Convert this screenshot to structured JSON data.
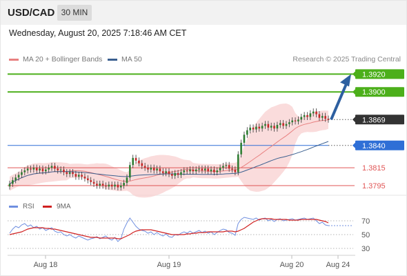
{
  "header": {
    "symbol": "USD/CAD",
    "timeframe": "30 MIN",
    "timestamp": "Wednesday, August 20, 2025 7:18:46 AM CET"
  },
  "legend": {
    "ma20_label": "MA 20 + Bollinger Bands",
    "ma50_label": "MA 50",
    "credit": "Research © 2025 Trading Central"
  },
  "rsi_legend": {
    "rsi_label": "RSI",
    "ma_label": "9MA"
  },
  "colors": {
    "up_candle": "#2e7d32",
    "down_candle": "#c62828",
    "resistance": "#4caf1a",
    "support": "#e05555",
    "pivot": "#2f6fd6",
    "last_price": "#333333",
    "ma50": "#3a5f8f",
    "ma20": "#e88080",
    "bollinger": "#f8d0d0",
    "rsi": "#6f8fe0",
    "rsi_ma": "#d02020",
    "arrow": "#2d5fa0"
  },
  "chart_data": [
    {
      "type": "candlestick",
      "title": "USD/CAD",
      "x_tick_labels": [
        "Aug 18",
        "Aug 19",
        "Aug 20",
        "Aug 24"
      ],
      "ylim": [
        1.3788,
        1.3935
      ],
      "levels": [
        {
          "value": 1.392,
          "label": "1.3920",
          "kind": "resistance"
        },
        {
          "value": 1.39,
          "label": "1.3900",
          "kind": "resistance"
        },
        {
          "value": 1.3869,
          "label": "1.3869",
          "kind": "last_price"
        },
        {
          "value": 1.384,
          "label": "1.3840",
          "kind": "pivot"
        },
        {
          "value": 1.3815,
          "label": "1.3815",
          "kind": "support"
        },
        {
          "value": 1.3795,
          "label": "1.3795",
          "kind": "support"
        }
      ],
      "series": [
        {
          "name": "MA 20 + Bollinger Bands"
        },
        {
          "name": "MA 50"
        }
      ],
      "closes": [
        1.3797,
        1.3801,
        1.3804,
        1.3807,
        1.381,
        1.3812,
        1.3814,
        1.3813,
        1.3815,
        1.3812,
        1.3814,
        1.3811,
        1.3813,
        1.3815,
        1.3817,
        1.3814,
        1.3812,
        1.3813,
        1.381,
        1.3808,
        1.381,
        1.3808,
        1.3805,
        1.3807,
        1.3805,
        1.3803,
        1.3801,
        1.3799,
        1.3797,
        1.3795,
        1.3797,
        1.3795,
        1.3794,
        1.3796,
        1.3794,
        1.3796,
        1.3793,
        1.3795,
        1.3798,
        1.3804,
        1.3818,
        1.3826,
        1.3823,
        1.382,
        1.3817,
        1.3815,
        1.3813,
        1.3815,
        1.3812,
        1.3814,
        1.3811,
        1.3809,
        1.3811,
        1.3808,
        1.3806,
        1.3809,
        1.3807,
        1.381,
        1.3812,
        1.3811,
        1.3813,
        1.3811,
        1.3813,
        1.3814,
        1.3812,
        1.3814,
        1.3811,
        1.3813,
        1.381,
        1.3812,
        1.3815,
        1.3817,
        1.3818,
        1.3814,
        1.3813,
        1.381,
        1.383,
        1.3843,
        1.3852,
        1.3857,
        1.386,
        1.3858,
        1.3861,
        1.3859,
        1.3862,
        1.3864,
        1.386,
        1.3862,
        1.3859,
        1.3863,
        1.3865,
        1.3862,
        1.3864,
        1.3866,
        1.3868,
        1.3867,
        1.3869,
        1.3872,
        1.3874,
        1.3872,
        1.3876,
        1.3878,
        1.3875,
        1.3871,
        1.3873,
        1.387,
        1.3869
      ],
      "current": {
        "last": 1.3869,
        "pivot": 1.384,
        "target": 1.392
      }
    },
    {
      "type": "line",
      "title": "RSI",
      "ylim": [
        25,
        78
      ],
      "y_ticks": [
        70,
        50,
        30
      ],
      "series": [
        {
          "name": "RSI",
          "values": [
            52,
            58,
            62,
            60,
            64,
            66,
            62,
            64,
            60,
            62,
            58,
            60,
            56,
            58,
            60,
            55,
            53,
            54,
            50,
            48,
            50,
            47,
            45,
            48,
            46,
            44,
            42,
            44,
            45,
            47,
            44,
            46,
            48,
            44,
            42,
            46,
            40,
            44,
            58,
            67,
            74,
            68,
            62,
            58,
            56,
            55,
            52,
            54,
            50,
            53,
            50,
            48,
            51,
            47,
            46,
            50,
            49,
            52,
            54,
            52,
            55,
            52,
            54,
            56,
            53,
            55,
            52,
            54,
            50,
            53,
            56,
            58,
            57,
            53,
            52,
            49,
            66,
            72,
            75,
            74,
            73,
            72,
            74,
            71,
            73,
            74,
            70,
            72,
            69,
            72,
            73,
            70,
            71,
            72,
            73,
            71,
            72,
            73,
            74,
            72,
            73,
            74,
            70,
            66,
            68,
            64,
            63
          ]
        },
        {
          "name": "9MA",
          "values": [
            50,
            51,
            52,
            53,
            54,
            56,
            58,
            59,
            60,
            60,
            60,
            60,
            59,
            59,
            58,
            58,
            57,
            56,
            55,
            54,
            53,
            52,
            51,
            50,
            49,
            48,
            47,
            46,
            46,
            46,
            45,
            45,
            45,
            45,
            45,
            45,
            44,
            44,
            46,
            48,
            50,
            53,
            55,
            56,
            57,
            57,
            57,
            57,
            56,
            55,
            54,
            53,
            52,
            51,
            50,
            50,
            50,
            50,
            50,
            51,
            51,
            52,
            52,
            53,
            53,
            53,
            54,
            54,
            54,
            54,
            54,
            54,
            55,
            55,
            55,
            54,
            55,
            57,
            59,
            62,
            65,
            68,
            70,
            72,
            73,
            73,
            73,
            73,
            72,
            72,
            72,
            72,
            72,
            71,
            71,
            71,
            71,
            72,
            72,
            72,
            72,
            72,
            72,
            71,
            70,
            69,
            67
          ]
        }
      ]
    }
  ]
}
